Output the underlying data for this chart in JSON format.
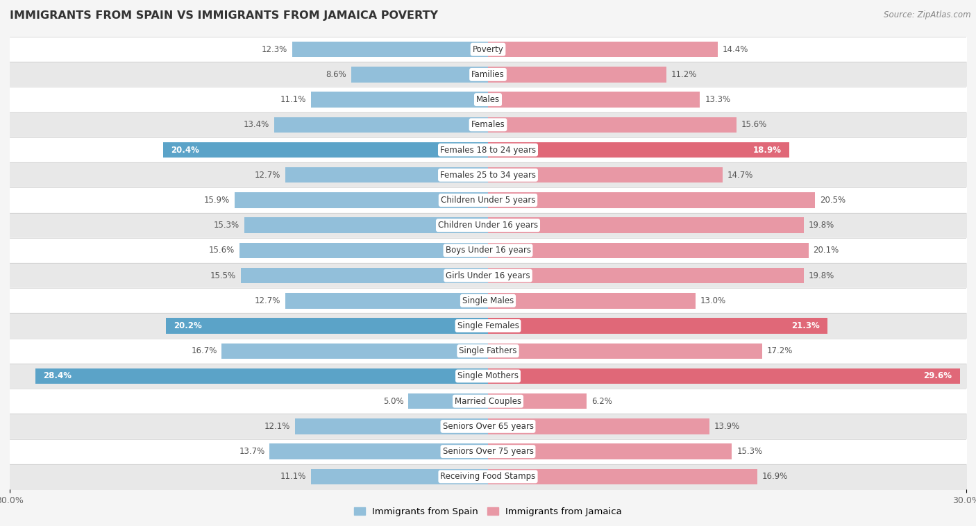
{
  "title": "IMMIGRANTS FROM SPAIN VS IMMIGRANTS FROM JAMAICA POVERTY",
  "source": "Source: ZipAtlas.com",
  "categories": [
    "Poverty",
    "Families",
    "Males",
    "Females",
    "Females 18 to 24 years",
    "Females 25 to 34 years",
    "Children Under 5 years",
    "Children Under 16 years",
    "Boys Under 16 years",
    "Girls Under 16 years",
    "Single Males",
    "Single Females",
    "Single Fathers",
    "Single Mothers",
    "Married Couples",
    "Seniors Over 65 years",
    "Seniors Over 75 years",
    "Receiving Food Stamps"
  ],
  "spain_values": [
    12.3,
    8.6,
    11.1,
    13.4,
    20.4,
    12.7,
    15.9,
    15.3,
    15.6,
    15.5,
    12.7,
    20.2,
    16.7,
    28.4,
    5.0,
    12.1,
    13.7,
    11.1
  ],
  "jamaica_values": [
    14.4,
    11.2,
    13.3,
    15.6,
    18.9,
    14.7,
    20.5,
    19.8,
    20.1,
    19.8,
    13.0,
    21.3,
    17.2,
    29.6,
    6.2,
    13.9,
    15.3,
    16.9
  ],
  "spain_color": "#92BFDA",
  "jamaica_color": "#E898A5",
  "spain_highlight_color": "#5BA3C8",
  "jamaica_highlight_color": "#E06878",
  "highlight_indices": [
    4,
    11,
    13
  ],
  "xlim": 30.0,
  "bar_height": 0.62,
  "bg_color": "#f5f5f5",
  "row_color_light": "#ffffff",
  "row_color_dark": "#e8e8e8",
  "legend_spain": "Immigrants from Spain",
  "legend_jamaica": "Immigrants from Jamaica"
}
